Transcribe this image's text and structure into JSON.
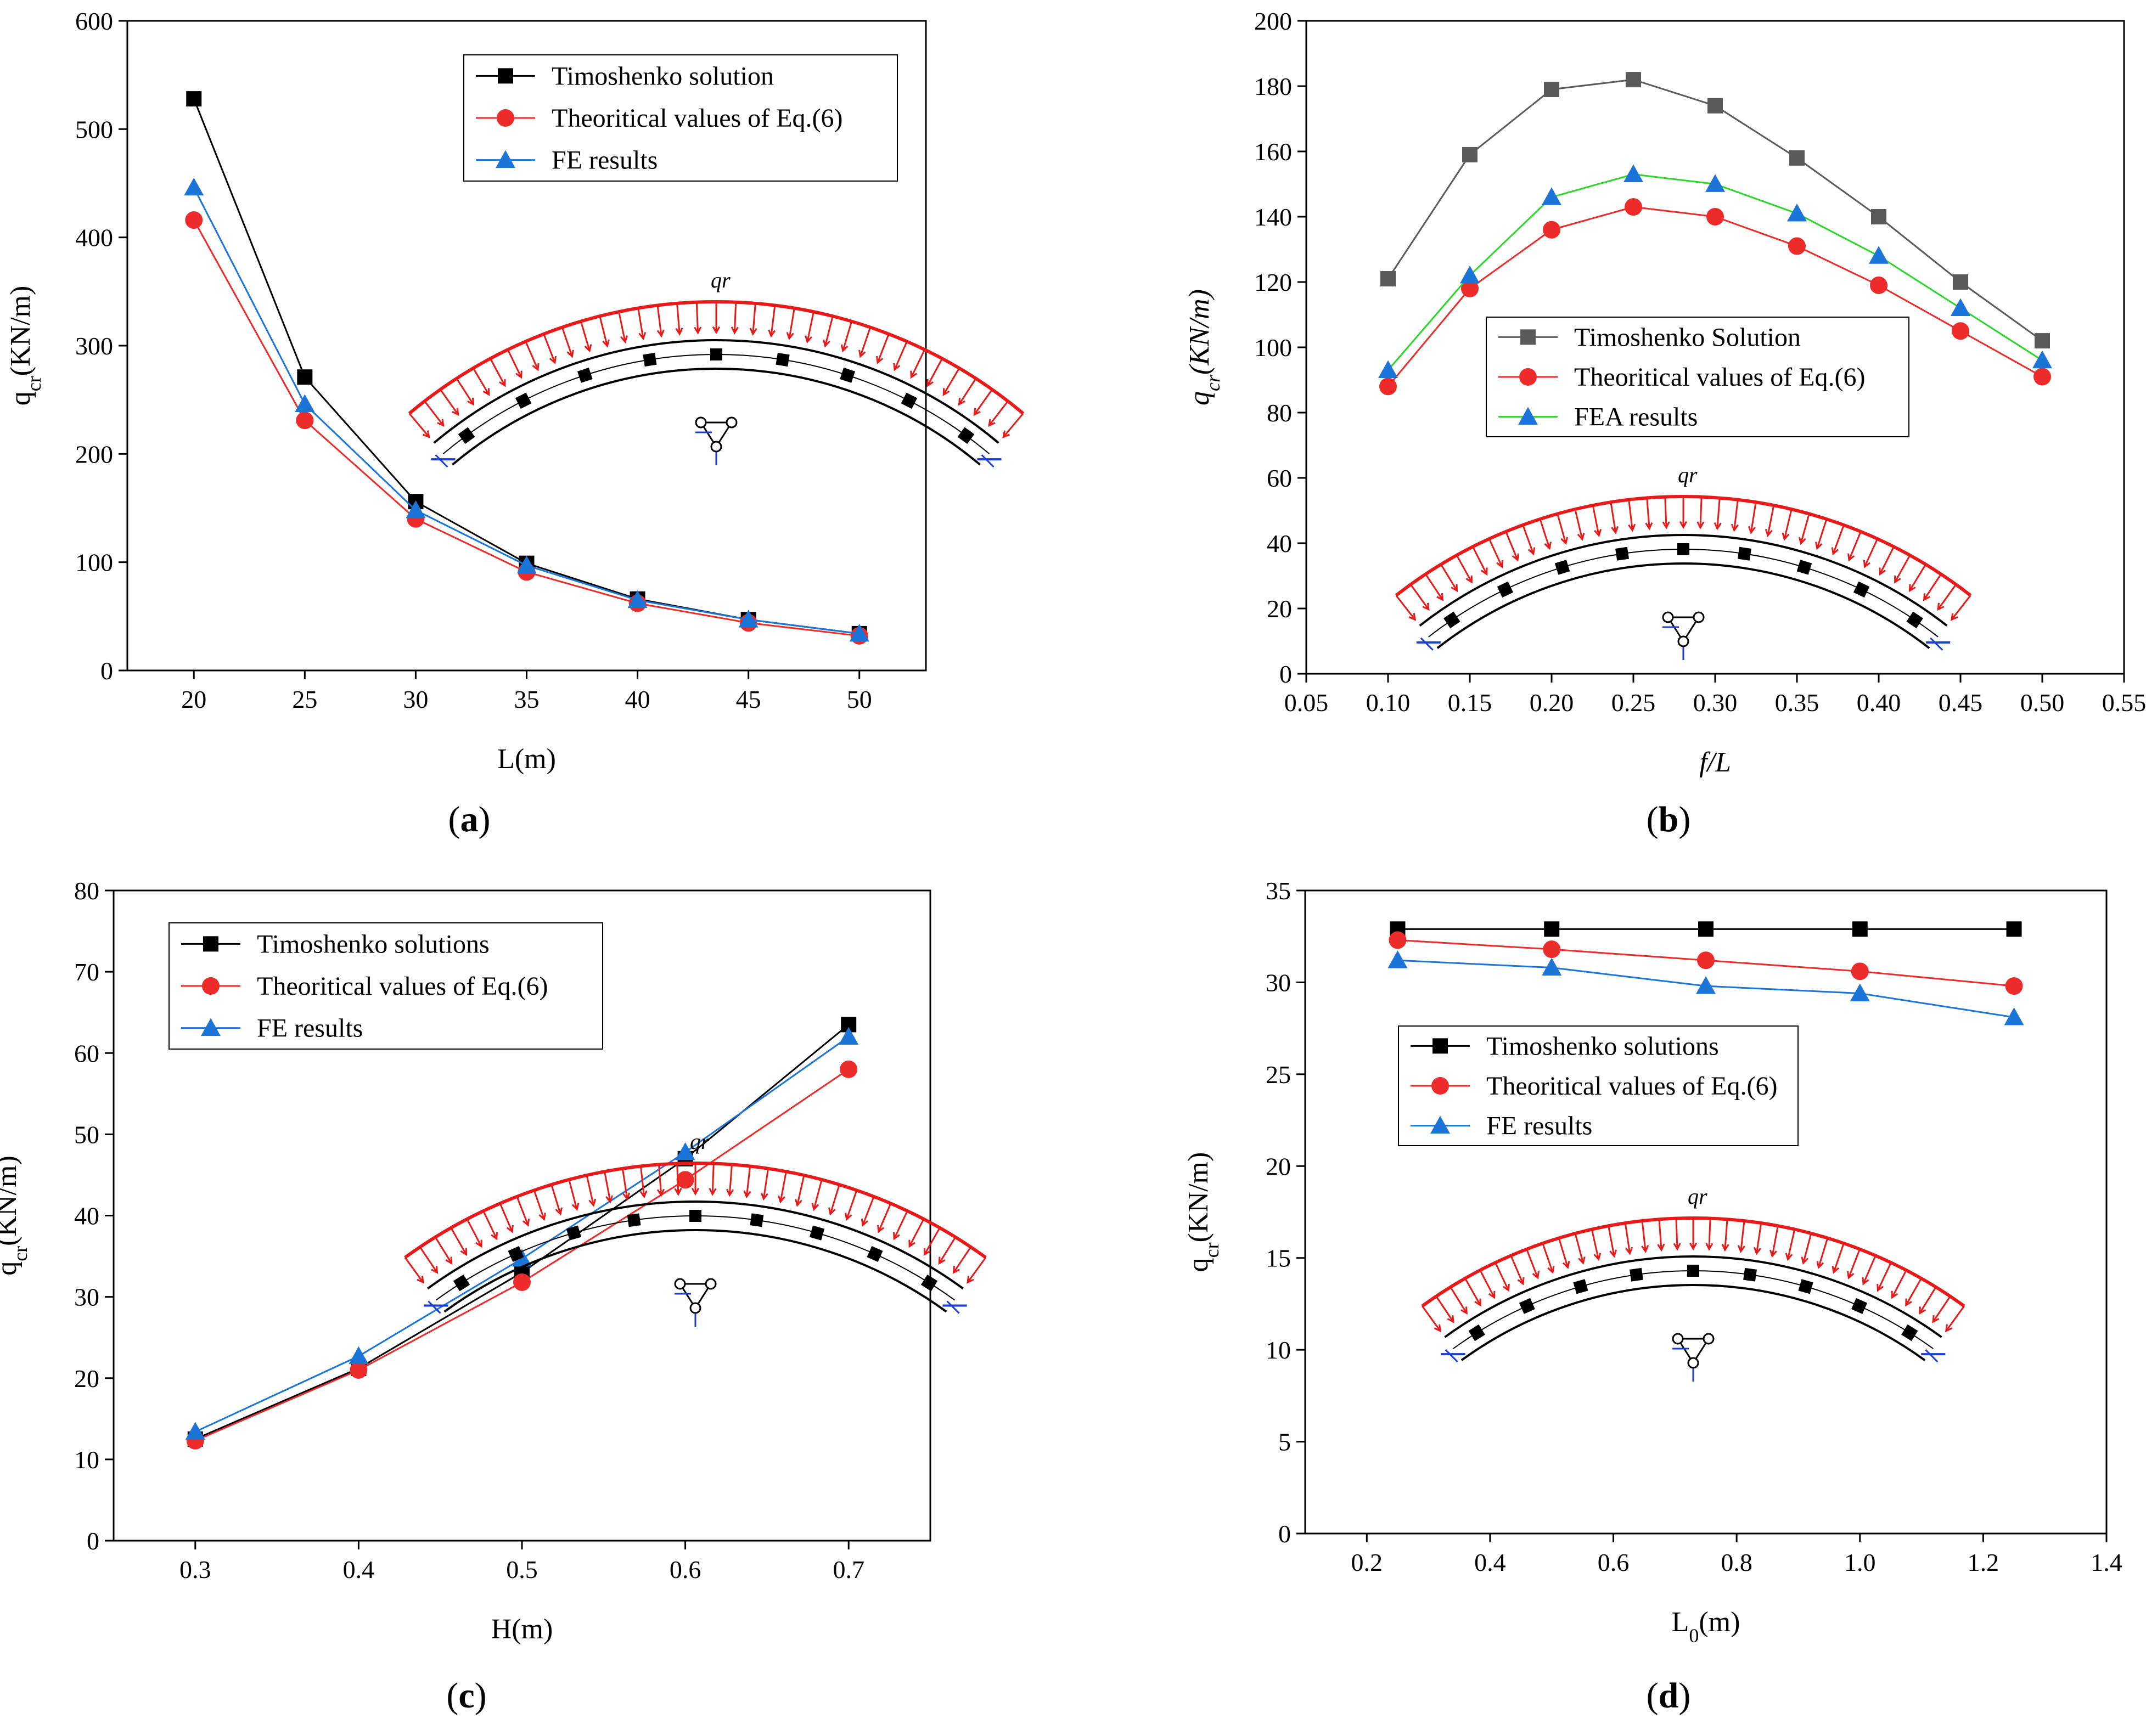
{
  "colors": {
    "black": "#000000",
    "red": "#ee2b2b",
    "blue": "#1b74d8",
    "green": "#2bd62b",
    "gray": "#5a5a5a",
    "load": "#e81919"
  },
  "chart_data": [
    {
      "type": "line",
      "panel_label": "a",
      "xlabel": "L(m)",
      "ylabel": "qcr(KN/m)",
      "xlim": [
        17,
        53
      ],
      "ylim": [
        0,
        600
      ],
      "xticks": [
        20,
        25,
        30,
        35,
        40,
        45,
        50
      ],
      "yticks": [
        0,
        100,
        200,
        300,
        400,
        500,
        600
      ],
      "x": [
        20,
        25,
        30,
        35,
        40,
        45,
        50
      ],
      "inset_label": "qr",
      "series": [
        {
          "name": "Timoshenko  solution",
          "color": "#000000",
          "marker": "square",
          "values": [
            528,
            271,
            156,
            99,
            66,
            47,
            34
          ]
        },
        {
          "name": "Theoritical values of Eq.(6)",
          "color": "#ee2b2b",
          "marker": "circle",
          "values": [
            416,
            231,
            140,
            91,
            62,
            44,
            32
          ]
        },
        {
          "name": "FE results",
          "color": "#1b74d8",
          "marker": "triangle",
          "values": [
            446,
            246,
            148,
            97,
            65,
            47,
            34
          ]
        }
      ]
    },
    {
      "type": "line",
      "panel_label": "b",
      "xlabel": "f/L",
      "ylabel": "qcr(KN/m)",
      "xlim": [
        0.05,
        0.55
      ],
      "ylim": [
        0,
        200
      ],
      "xticks": [
        0.05,
        0.1,
        0.15,
        0.2,
        0.25,
        0.3,
        0.35,
        0.4,
        0.45,
        0.5,
        0.55
      ],
      "yticks": [
        0,
        20,
        40,
        60,
        80,
        100,
        120,
        140,
        160,
        180,
        200
      ],
      "x": [
        0.1,
        0.15,
        0.2,
        0.25,
        0.3,
        0.35,
        0.4,
        0.45,
        0.5
      ],
      "inset_label": "qr",
      "series": [
        {
          "name": "Timoshenko  Solution",
          "color": "#5a5a5a",
          "marker": "square",
          "values": [
            121,
            159,
            179,
            182,
            174,
            158,
            140,
            120,
            102
          ]
        },
        {
          "name": "Theoritical values of Eq.(6)",
          "color": "#ee2b2b",
          "marker": "circle",
          "values": [
            88,
            118,
            136,
            143,
            140,
            131,
            119,
            105,
            91
          ]
        },
        {
          "name": "FEA results",
          "color": "#2bd62b",
          "marker_color": "#1b74d8",
          "marker": "triangle",
          "values": [
            93,
            122,
            146,
            153,
            150,
            141,
            128,
            112,
            96
          ]
        }
      ]
    },
    {
      "type": "line",
      "panel_label": "c",
      "xlabel": "H(m)",
      "ylabel": "qcr(KN/m)",
      "xlim": [
        0.25,
        0.75
      ],
      "ylim": [
        0,
        80
      ],
      "xticks": [
        0.3,
        0.4,
        0.5,
        0.6,
        0.7
      ],
      "yticks": [
        0,
        10,
        20,
        30,
        40,
        50,
        60,
        70,
        80
      ],
      "x": [
        0.3,
        0.4,
        0.5,
        0.6,
        0.7
      ],
      "inset_label": "qr",
      "series": [
        {
          "name": "Timoshenko  solutions",
          "color": "#000000",
          "marker": "square",
          "values": [
            12.5,
            21.2,
            33.0,
            47.0,
            63.5
          ]
        },
        {
          "name": "Theoritical values of Eq.(6)",
          "color": "#ee2b2b",
          "marker": "circle",
          "values": [
            12.3,
            21.0,
            31.8,
            44.4,
            58.0
          ]
        },
        {
          "name": "FE results",
          "color": "#1b74d8",
          "marker": "triangle",
          "values": [
            13.4,
            22.7,
            34.7,
            47.8,
            62.0
          ]
        }
      ]
    },
    {
      "type": "line",
      "panel_label": "d",
      "xlabel": "L0(m)",
      "ylabel": "qcr(KN/m)",
      "xlim": [
        0.1,
        1.4
      ],
      "ylim": [
        0,
        35
      ],
      "xticks": [
        0.2,
        0.4,
        0.6,
        0.8,
        1.0,
        1.2,
        1.4
      ],
      "yticks": [
        0,
        5,
        10,
        15,
        20,
        25,
        30,
        35
      ],
      "x": [
        0.25,
        0.5,
        0.75,
        1.0,
        1.25
      ],
      "inset_label": "qr",
      "series": [
        {
          "name": "Timoshenko  solutions",
          "color": "#000000",
          "marker": "square",
          "values": [
            32.9,
            32.9,
            32.9,
            32.9,
            32.9
          ]
        },
        {
          "name": "Theoritical values of Eq.(6)",
          "color": "#ee2b2b",
          "marker": "circle",
          "values": [
            32.3,
            31.8,
            31.2,
            30.6,
            29.8
          ]
        },
        {
          "name": "FE results",
          "color": "#1b74d8",
          "marker": "triangle",
          "values": [
            31.2,
            30.8,
            29.8,
            29.4,
            28.1
          ]
        }
      ]
    }
  ]
}
